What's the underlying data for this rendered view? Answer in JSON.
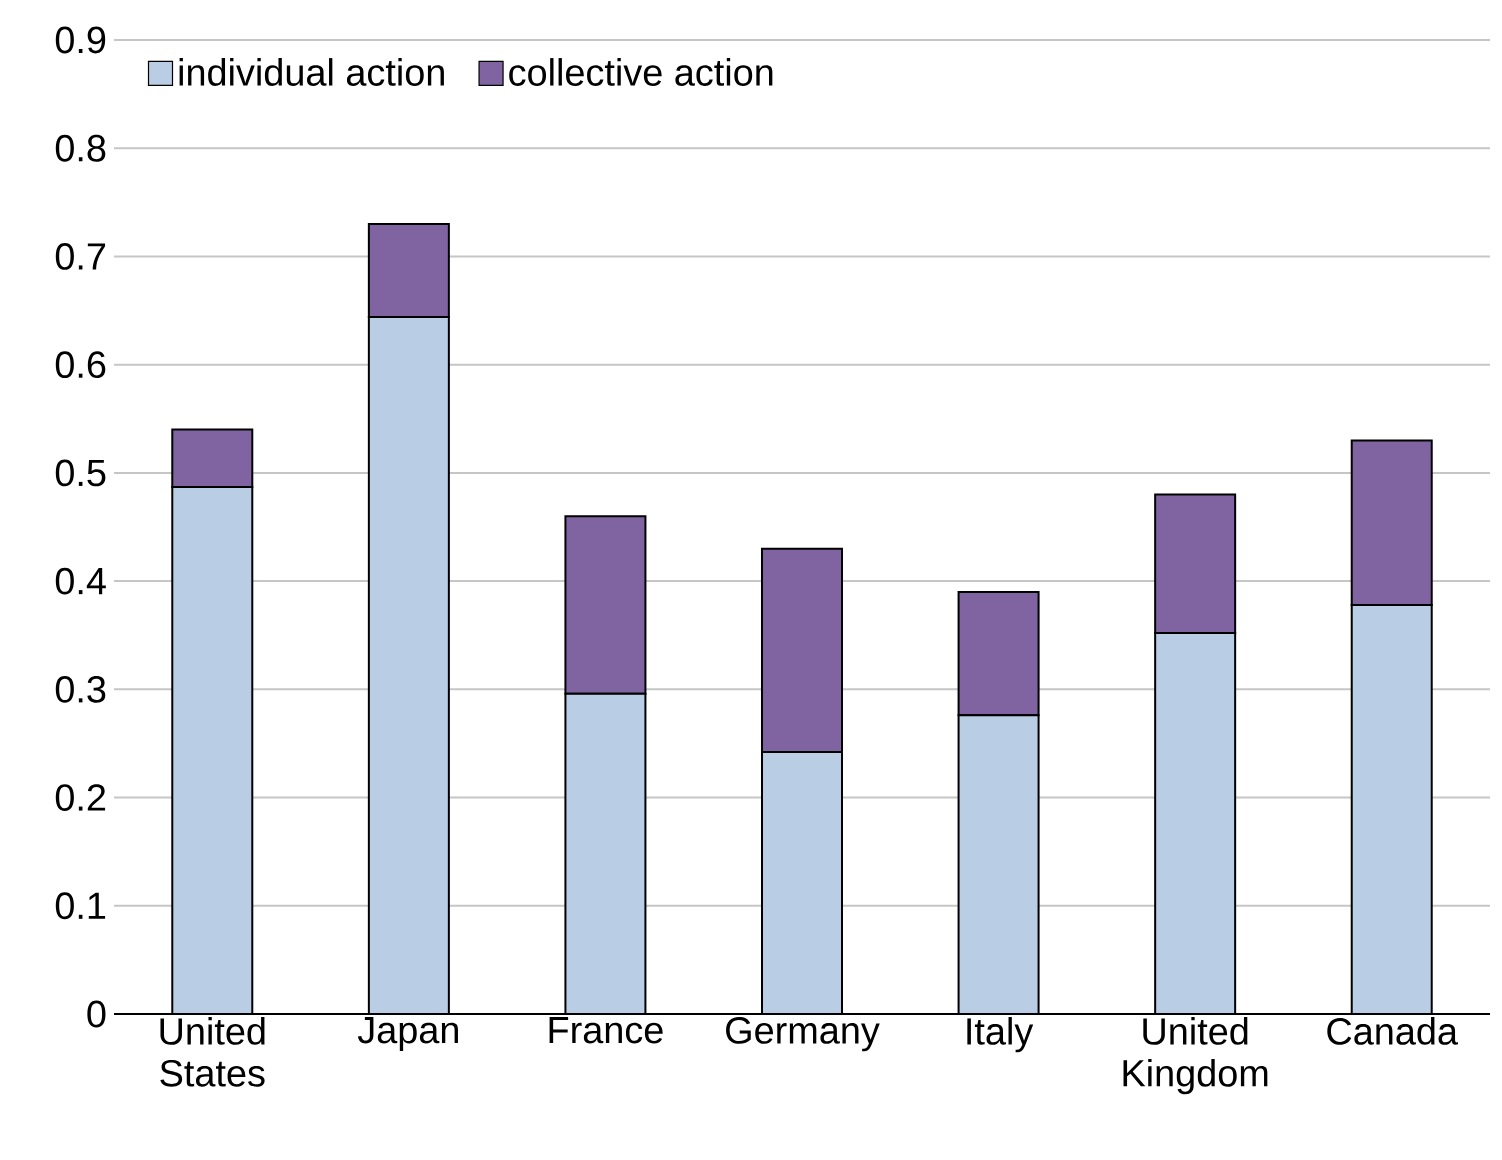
{
  "chart_data": {
    "type": "bar",
    "stacked": true,
    "categories": [
      "United States",
      "Japan",
      "France",
      "Germany",
      "Italy",
      "United Kingdom",
      "Canada"
    ],
    "series": [
      {
        "name": "individual action",
        "color": "#b9cde5",
        "values": [
          0.487,
          0.644,
          0.296,
          0.242,
          0.276,
          0.352,
          0.378
        ]
      },
      {
        "name": "collective action",
        "color": "#8064a2",
        "values": [
          0.053,
          0.086,
          0.164,
          0.188,
          0.114,
          0.128,
          0.152
        ]
      }
    ],
    "ylim": [
      0,
      0.9
    ],
    "yticks": [
      0,
      0.1,
      0.2,
      0.3,
      0.4,
      0.5,
      0.6,
      0.7,
      0.8,
      0.9
    ],
    "grid": "y",
    "legend": "top left"
  }
}
